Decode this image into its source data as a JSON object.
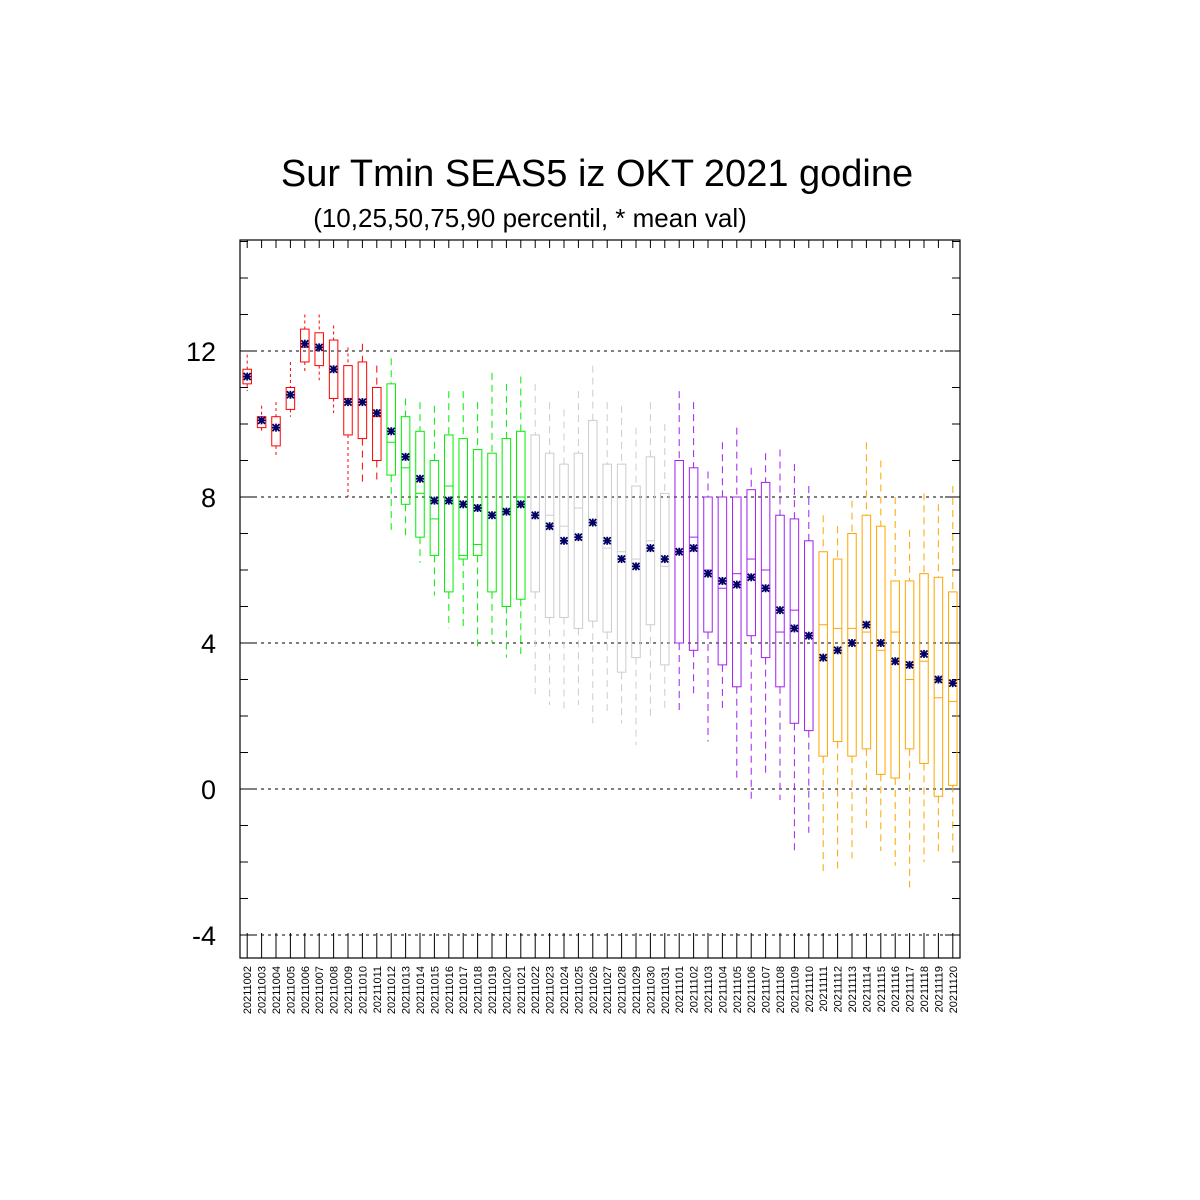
{
  "chart_data": {
    "type": "box",
    "title": "Sur Tmin SEAS5 iz OKT 2021 godine",
    "subtitle": "(10,25,50,75,90 percentil, * mean val)",
    "ylim": [
      -4.6,
      15.2
    ],
    "yticks": [
      -4,
      0,
      4,
      8,
      12
    ],
    "ytick_labels": [
      "-4",
      "0",
      "4",
      "8",
      "12"
    ],
    "reference_lines": [
      -4,
      0,
      4,
      8,
      12
    ],
    "grid": "dashed horizontal lines at major ticks",
    "categories": [
      "20211002",
      "20211003",
      "20211004",
      "20211005",
      "20211006",
      "20211007",
      "20211008",
      "20211009",
      "20211010",
      "20211011",
      "20211012",
      "20211013",
      "20211014",
      "20211015",
      "20211016",
      "20211017",
      "20211018",
      "20211019",
      "20211020",
      "20211021",
      "20211022",
      "20211023",
      "20211024",
      "20211025",
      "20211026",
      "20211027",
      "20211028",
      "20211029",
      "20211030",
      "20211031",
      "20211101",
      "20211102",
      "20211103",
      "20211104",
      "20211105",
      "20211106",
      "20211107",
      "20211108",
      "20211109",
      "20211110",
      "20211111",
      "20211112",
      "20211113",
      "20211114",
      "20211115",
      "20211116",
      "20211117",
      "20211118",
      "20211119",
      "20211120"
    ],
    "colors": [
      "#ff0000",
      "#ff0000",
      "#ff0000",
      "#ff0000",
      "#ff0000",
      "#ff0000",
      "#ff0000",
      "#ff0000",
      "#ff0000",
      "#ff0000",
      "#00ee00",
      "#00ee00",
      "#00ee00",
      "#00ee00",
      "#00ee00",
      "#00ee00",
      "#00ee00",
      "#00ee00",
      "#00ee00",
      "#00ee00",
      "#cccccc",
      "#cccccc",
      "#cccccc",
      "#cccccc",
      "#cccccc",
      "#cccccc",
      "#cccccc",
      "#cccccc",
      "#cccccc",
      "#cccccc",
      "#a020f0",
      "#a020f0",
      "#a020f0",
      "#a020f0",
      "#a020f0",
      "#a020f0",
      "#a020f0",
      "#a020f0",
      "#a020f0",
      "#a020f0",
      "#ffa500",
      "#ffa500",
      "#ffa500",
      "#ffa500",
      "#ffa500",
      "#ffa500",
      "#ffa500",
      "#ffa500",
      "#ffa500",
      "#ffa500"
    ],
    "mean_marker_color": "#000066",
    "p10": [
      10.9,
      9.8,
      9.1,
      10.2,
      11.4,
      11.2,
      10.3,
      8.0,
      8.4,
      8.4,
      7.1,
      6.9,
      6.2,
      5.3,
      4.4,
      4.4,
      3.8,
      4.0,
      3.6,
      3.7,
      2.6,
      2.3,
      2.2,
      2.3,
      1.8,
      2.0,
      1.8,
      1.2,
      1.9,
      2.2,
      2.1,
      2.6,
      1.3,
      2.1,
      0.3,
      -0.4,
      0.4,
      -0.3,
      -1.7,
      -1.2,
      -2.3,
      -2.2,
      -1.9,
      -1.2,
      -1.7,
      -2.1,
      -2.7,
      -2.0,
      -1.8,
      -1.8
    ],
    "p25": [
      11.1,
      9.9,
      9.4,
      10.4,
      11.7,
      11.6,
      10.7,
      9.7,
      9.6,
      9.0,
      8.6,
      7.8,
      6.9,
      6.4,
      5.4,
      6.3,
      6.4,
      5.4,
      5.0,
      5.2,
      5.4,
      4.7,
      4.7,
      4.4,
      4.6,
      4.3,
      3.2,
      3.6,
      4.5,
      3.4,
      4.0,
      3.8,
      4.3,
      3.4,
      2.8,
      4.2,
      3.6,
      2.8,
      1.8,
      1.6,
      0.9,
      1.3,
      0.9,
      1.1,
      0.4,
      0.3,
      1.1,
      0.7,
      -0.2,
      0.1
    ],
    "p50": [
      11.3,
      10.1,
      9.9,
      10.8,
      12.1,
      12.1,
      11.5,
      10.7,
      10.6,
      10.2,
      9.5,
      8.8,
      8.1,
      7.4,
      8.3,
      6.4,
      6.7,
      7.5,
      7.6,
      8.0,
      7.4,
      7.5,
      7.2,
      7.7,
      7.3,
      6.6,
      6.5,
      6.3,
      6.8,
      6.1,
      6.5,
      6.9,
      6.0,
      5.5,
      5.9,
      6.3,
      6.0,
      4.3,
      4.9,
      4.2,
      4.5,
      4.4,
      4.4,
      4.3,
      3.8,
      4.3,
      3.0,
      3.5,
      2.5,
      2.4
    ],
    "p75": [
      11.5,
      10.2,
      10.2,
      11.0,
      12.6,
      12.5,
      12.3,
      11.6,
      11.7,
      11.0,
      11.1,
      10.2,
      9.8,
      9.0,
      9.7,
      9.6,
      9.3,
      9.2,
      9.6,
      9.8,
      9.7,
      9.2,
      8.9,
      9.2,
      10.1,
      8.9,
      8.9,
      8.3,
      9.1,
      8.1,
      9.0,
      8.8,
      8.0,
      8.0,
      8.0,
      8.2,
      8.4,
      7.5,
      7.4,
      6.8,
      6.5,
      6.3,
      7.0,
      7.5,
      7.2,
      5.7,
      5.7,
      5.9,
      5.8,
      5.4
    ],
    "p90": [
      11.9,
      10.5,
      10.6,
      11.7,
      13.0,
      13.0,
      12.7,
      12.1,
      12.2,
      11.6,
      11.8,
      10.7,
      10.6,
      10.5,
      10.9,
      10.9,
      10.6,
      11.4,
      11.1,
      11.3,
      11.1,
      10.6,
      10.4,
      10.9,
      11.6,
      10.6,
      10.5,
      9.9,
      10.6,
      10.0,
      10.9,
      10.6,
      8.7,
      9.5,
      9.9,
      8.8,
      9.2,
      9.3,
      8.9,
      8.3,
      7.5,
      7.2,
      7.9,
      9.5,
      9.0,
      8.0,
      7.1,
      8.1,
      7.8,
      8.3
    ],
    "mean": [
      11.3,
      10.1,
      9.9,
      10.8,
      12.2,
      12.1,
      11.5,
      10.6,
      10.6,
      10.3,
      9.8,
      9.1,
      8.5,
      7.9,
      7.9,
      7.8,
      7.7,
      7.5,
      7.6,
      7.8,
      7.5,
      7.2,
      6.8,
      6.9,
      7.3,
      6.8,
      6.3,
      6.1,
      6.6,
      6.3,
      6.5,
      6.6,
      5.9,
      5.7,
      5.6,
      5.8,
      5.5,
      4.9,
      4.4,
      4.2,
      3.6,
      3.8,
      4.0,
      4.5,
      4.0,
      3.5,
      3.4,
      3.7,
      3.0,
      2.9
    ]
  }
}
